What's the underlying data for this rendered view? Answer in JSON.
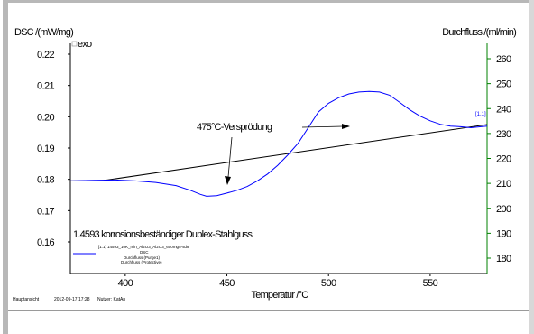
{
  "chart_data": {
    "type": "line",
    "left_axis": {
      "label": "DSC /(mW/mg)",
      "ticks": [
        "0.22",
        "0.21",
        "0.20",
        "0.19",
        "0.18",
        "0.17",
        "0.16"
      ],
      "range": [
        0.155,
        0.222
      ]
    },
    "right_axis": {
      "label": "Durchfluss /(ml/min)",
      "ticks": [
        "260",
        "250",
        "240",
        "230",
        "220",
        "210",
        "200",
        "190",
        "180"
      ],
      "range": [
        173,
        264
      ]
    },
    "x_axis": {
      "label": "Temperatur /°C",
      "ticks": [
        "400",
        "450",
        "500",
        "550"
      ],
      "range": [
        373,
        578
      ]
    },
    "exo_label": "exo",
    "annotation": "475°C-Versprödung",
    "end_marker": "[1.1]",
    "sample_title": "1.4593 korrosionsbeständiger Duplex-Stahlguss",
    "legend": {
      "line1": "[1.1] 14593_10K_min_Al2O3_Al2O3_600mg5-sd9",
      "line2": "DSC",
      "line3": "Durchfluss (Purge1)",
      "line4": "Durchfluss (Protective)"
    },
    "footer": {
      "label1": "Hauptansicht",
      "timestamp": "2012-09-17 17:28",
      "label2": "Nutzer: KatAn"
    },
    "series": [
      {
        "color": "#0000ff",
        "x": [
          373,
          385,
          395,
          405,
          415,
          425,
          432,
          437,
          440,
          445,
          450,
          455,
          460,
          465,
          470,
          475,
          480,
          485,
          490,
          495,
          500,
          505,
          510,
          515,
          520,
          525,
          530,
          535,
          540,
          545,
          550,
          555,
          560,
          565,
          570,
          575,
          578
        ],
        "y": [
          0.1795,
          0.1797,
          0.1798,
          0.1795,
          0.179,
          0.178,
          0.1765,
          0.1752,
          0.1746,
          0.1748,
          0.1756,
          0.1765,
          0.1777,
          0.1795,
          0.1817,
          0.1845,
          0.1878,
          0.1915,
          0.1965,
          0.2015,
          0.2043,
          0.2061,
          0.2073,
          0.2079,
          0.2081,
          0.2079,
          0.2069,
          0.2046,
          0.2022,
          0.2002,
          0.1987,
          0.1976,
          0.197,
          0.1968,
          0.1965,
          0.1968,
          0.197
        ]
      },
      {
        "color": "#000000",
        "x": [
          373,
          388,
          578
        ],
        "y": [
          0.1795,
          0.1795,
          0.1975
        ]
      }
    ],
    "colors": {
      "left_axis": "#000000",
      "right_axis": "#008000",
      "blue": "#0000ff"
    }
  }
}
